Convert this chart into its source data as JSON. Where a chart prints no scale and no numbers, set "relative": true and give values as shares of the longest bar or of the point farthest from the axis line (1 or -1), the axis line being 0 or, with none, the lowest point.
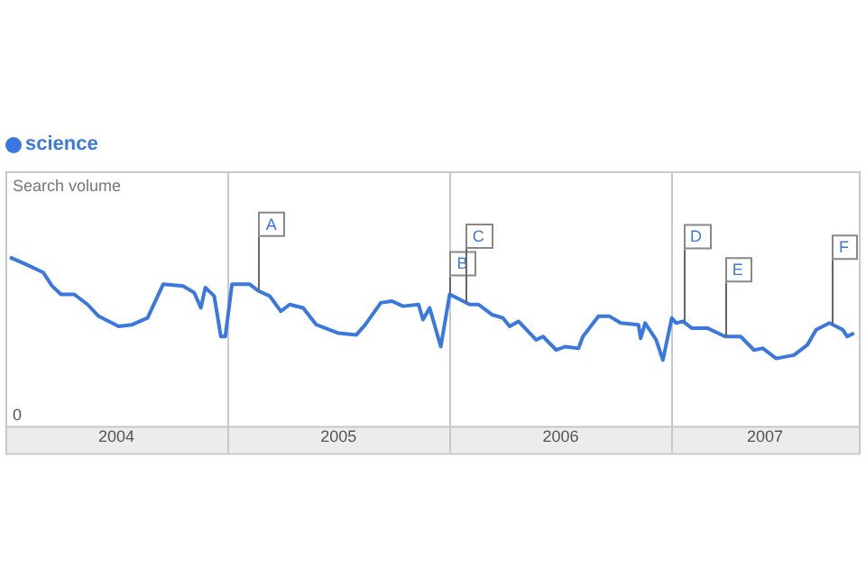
{
  "chart_data": {
    "type": "line",
    "relative": true,
    "ylabel": "Search volume",
    "legend": "top left",
    "grid": "x",
    "marker": "none",
    "line_style": "solid",
    "xlim": [
      2004,
      2007.85
    ],
    "xticks": [
      {
        "value": 2004.5,
        "label": "2004"
      },
      {
        "value": 2005,
        "label": null
      },
      {
        "value": 2005.5,
        "label": "2005"
      },
      {
        "value": 2006,
        "label": null
      },
      {
        "value": 2006.5,
        "label": "2006"
      },
      {
        "value": 2007,
        "label": null
      },
      {
        "value": 2007.42,
        "label": "2007"
      }
    ],
    "series": [
      {
        "name": "science",
        "color": "#3a78e0",
        "x": [
          2004.02,
          2004.09,
          2004.17,
          2004.21,
          2004.25,
          2004.31,
          2004.37,
          2004.42,
          2004.51,
          2004.57,
          2004.64,
          2004.71,
          2004.8,
          2004.85,
          2004.88,
          2004.9,
          2004.94,
          2004.97,
          2004.99,
          2005.02,
          2005.1,
          2005.14,
          2005.19,
          2005.24,
          2005.28,
          2005.34,
          2005.4,
          2005.5,
          2005.58,
          2005.62,
          2005.69,
          2005.74,
          2005.79,
          2005.86,
          2005.88,
          2005.91,
          2005.96,
          2006.0,
          2006.09,
          2006.13,
          2006.19,
          2006.24,
          2006.27,
          2006.31,
          2006.39,
          2006.42,
          2006.48,
          2006.52,
          2006.58,
          2006.6,
          2006.67,
          2006.72,
          2006.77,
          2006.85,
          2006.86,
          2006.88,
          2006.93,
          2006.96,
          2007.0,
          2007.02,
          2007.05,
          2007.09,
          2007.16,
          2007.24,
          2007.31,
          2007.37,
          2007.41,
          2007.47,
          2007.55,
          2007.61,
          2007.65,
          2007.71,
          2007.77,
          2007.79,
          2007.82
        ],
        "values": [
          1.0,
          0.96,
          0.91,
          0.83,
          0.78,
          0.78,
          0.72,
          0.65,
          0.59,
          0.6,
          0.64,
          0.84,
          0.83,
          0.79,
          0.7,
          0.82,
          0.77,
          0.53,
          0.53,
          0.84,
          0.84,
          0.8,
          0.77,
          0.68,
          0.72,
          0.7,
          0.6,
          0.55,
          0.54,
          0.6,
          0.73,
          0.74,
          0.71,
          0.72,
          0.63,
          0.7,
          0.47,
          0.78,
          0.72,
          0.72,
          0.66,
          0.64,
          0.59,
          0.62,
          0.51,
          0.53,
          0.45,
          0.47,
          0.46,
          0.53,
          0.65,
          0.65,
          0.61,
          0.6,
          0.52,
          0.61,
          0.51,
          0.39,
          0.64,
          0.61,
          0.62,
          0.58,
          0.58,
          0.53,
          0.53,
          0.45,
          0.46,
          0.4,
          0.42,
          0.48,
          0.57,
          0.61,
          0.57,
          0.53,
          0.55
        ]
      }
    ],
    "annotations": [
      "0",
      {
        "text": "A",
        "x": 2005.14,
        "y": 0.8
      },
      {
        "text": "B",
        "x": 2006.0,
        "y": 0.78
      },
      {
        "text": "C",
        "x": 2006.07,
        "y": 0.73
      },
      {
        "text": "D",
        "x": 2007.05,
        "y": 0.62
      },
      {
        "text": "E",
        "x": 2007.24,
        "y": 0.53
      },
      {
        "text": "F",
        "x": 2007.72,
        "y": 0.6
      }
    ]
  }
}
